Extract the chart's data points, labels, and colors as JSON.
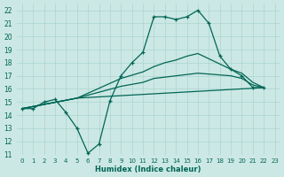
{
  "xlabel": "Humidex (Indice chaleur)",
  "bg_color": "#cce8e4",
  "grid_color": "#aad4d0",
  "line_color": "#006655",
  "xlim": [
    -0.5,
    23.5
  ],
  "ylim": [
    11,
    22.5
  ],
  "xticks": [
    0,
    1,
    2,
    3,
    4,
    5,
    6,
    7,
    8,
    9,
    10,
    11,
    12,
    13,
    14,
    15,
    16,
    17,
    18,
    19,
    20,
    21,
    22,
    23
  ],
  "yticks": [
    11,
    12,
    13,
    14,
    15,
    16,
    17,
    18,
    19,
    20,
    21,
    22
  ],
  "lines": [
    {
      "x": [
        0,
        1,
        2,
        3,
        4,
        5,
        6,
        7,
        8,
        9,
        10,
        11,
        12,
        13,
        14,
        15,
        16,
        17,
        18,
        19,
        20,
        21,
        22
      ],
      "y": [
        14.5,
        14.5,
        15.0,
        15.2,
        14.2,
        13.0,
        11.1,
        11.8,
        15.1,
        17.0,
        18.0,
        18.8,
        21.5,
        21.5,
        21.3,
        21.5,
        22.0,
        21.0,
        18.5,
        17.5,
        17.0,
        16.1,
        16.1
      ],
      "marker": true
    },
    {
      "x": [
        0,
        5,
        9,
        11,
        12,
        13,
        14,
        15,
        16,
        19,
        20,
        21,
        22
      ],
      "y": [
        14.5,
        15.3,
        16.8,
        17.3,
        17.7,
        18.0,
        18.2,
        18.5,
        18.7,
        17.5,
        17.2,
        16.5,
        16.1
      ],
      "marker": false
    },
    {
      "x": [
        0,
        5,
        9,
        11,
        12,
        13,
        14,
        15,
        16,
        19,
        20,
        21,
        22
      ],
      "y": [
        14.5,
        15.3,
        16.2,
        16.5,
        16.8,
        16.9,
        17.0,
        17.1,
        17.2,
        17.0,
        16.8,
        16.3,
        16.1
      ],
      "marker": false
    },
    {
      "x": [
        0,
        5,
        22
      ],
      "y": [
        14.5,
        15.3,
        16.1
      ],
      "marker": false
    }
  ]
}
